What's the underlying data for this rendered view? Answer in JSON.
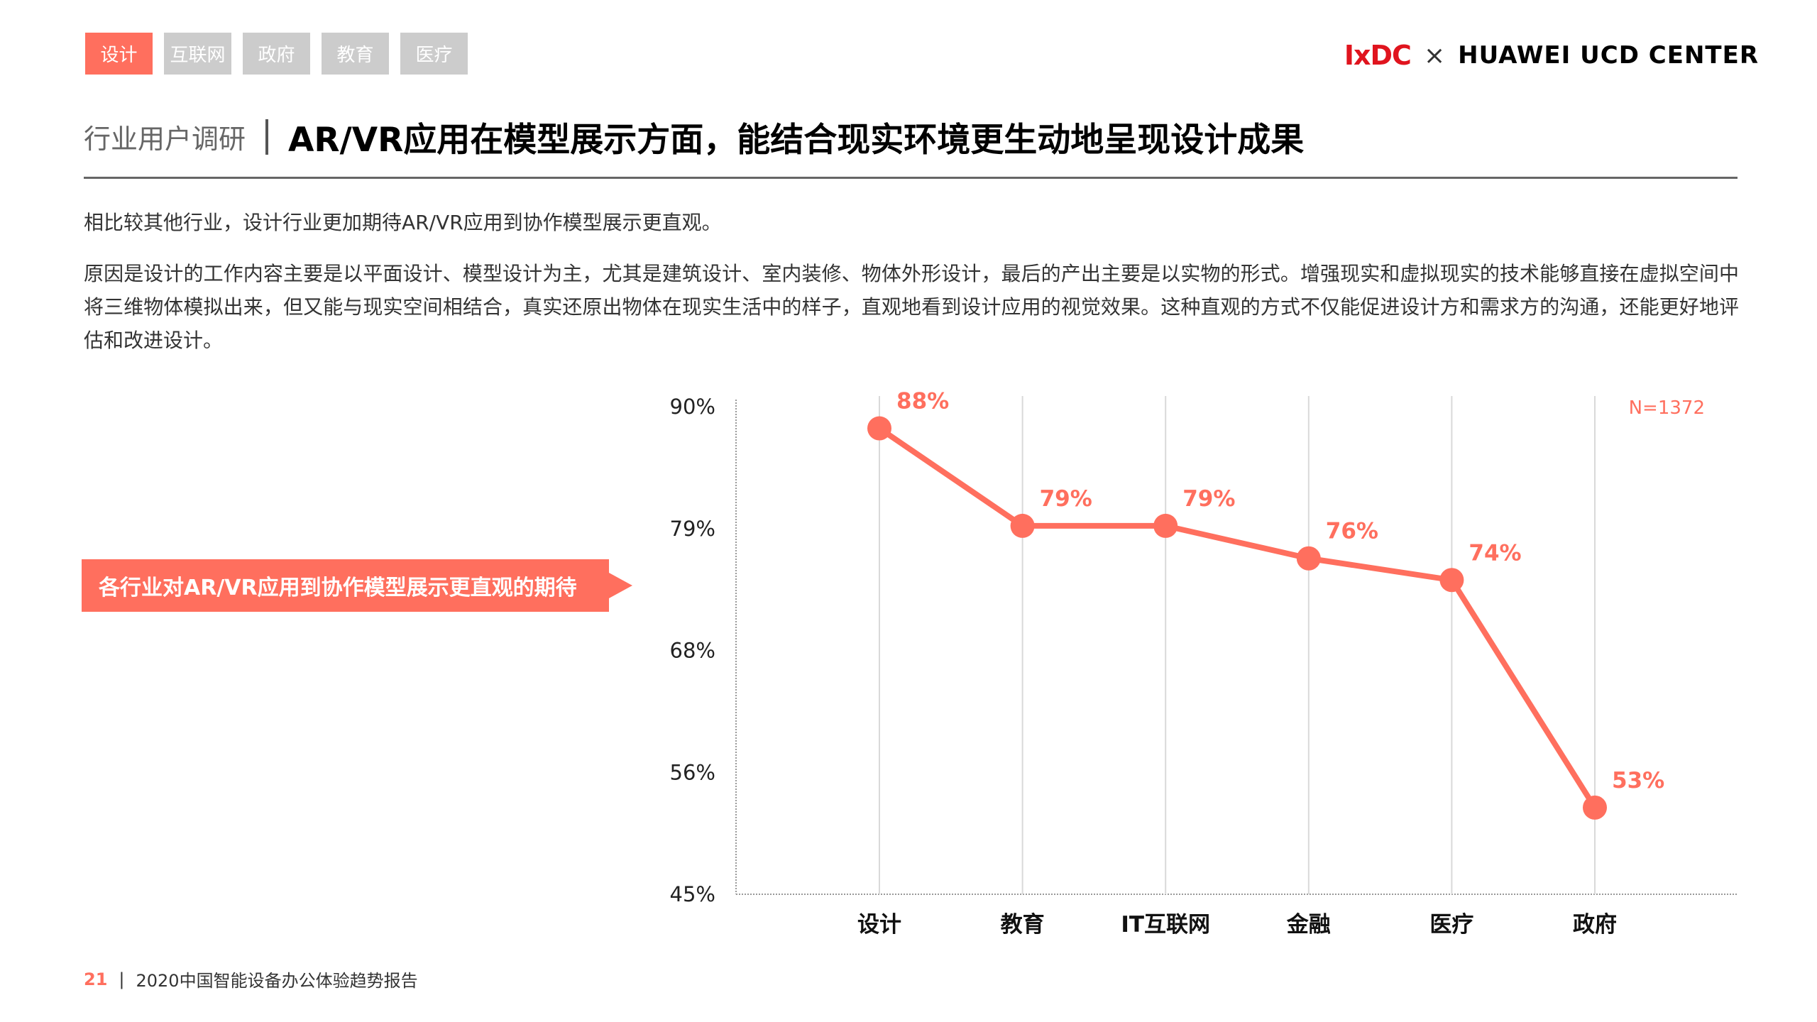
{
  "tabs": [
    {
      "label": "设计",
      "active": true
    },
    {
      "label": "互联网"
    },
    {
      "label": "政府"
    },
    {
      "label": "教育"
    },
    {
      "label": "医疗"
    }
  ],
  "logo": {
    "left": "IxDC",
    "times": "×",
    "right": "HUAWEI UCD CENTER"
  },
  "header": {
    "section": "行业用户调研",
    "title": "AR/VR应用在模型展示方面，能结合现实环境更生动地呈现设计成果"
  },
  "body": {
    "summary": "相比较其他行业，设计行业更加期待AR/VR应用到协作模型展示更直观。",
    "detail": "原因是设计的工作内容主要是以平面设计、模型设计为主，尤其是建筑设计、室内装修、物体外形设计，最后的产出主要是以实物的形式。增强现实和虚拟现实的技术能够直接在虚拟空间中将三维物体模拟出来，但又能与现实空间相结合，真实还原出物体在现实生活中的样子，直观地看到设计应用的视觉效果。这种直观的方式不仅能促进设计方和需求方的沟通，还能更好地评估和改进设计。"
  },
  "callout": "各行业对AR/VR应用到协作模型展示更直观的期待",
  "chart_data": {
    "type": "line",
    "categories": [
      "设计",
      "教育",
      "IT互联网",
      "金融",
      "医疗",
      "政府"
    ],
    "values": [
      88,
      79,
      79,
      76,
      74,
      53
    ],
    "value_labels": [
      "88%",
      "79%",
      "79%",
      "76%",
      "74%",
      "53%"
    ],
    "ylim": [
      45,
      90
    ],
    "yticks": [
      90,
      78.75,
      67.5,
      56.25,
      45
    ],
    "ytick_labels": [
      "90%",
      "79%",
      "68%",
      "56%",
      "45%"
    ],
    "annotation": "N=1372",
    "grid": "vertical",
    "color": "#ff6f5e"
  },
  "footer": {
    "page": "21",
    "divider": "|",
    "report": "2020中国智能设备办公体验趋势报告"
  }
}
